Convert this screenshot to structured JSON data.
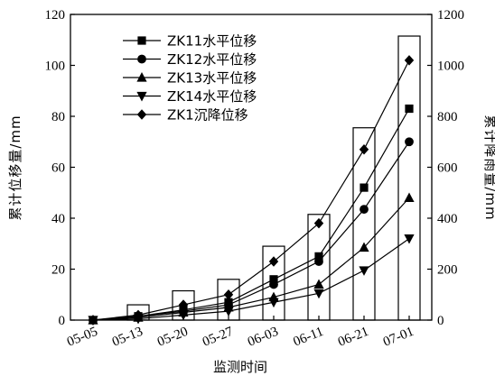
{
  "chart_data": {
    "type": "bar+line",
    "categories": [
      "05-05",
      "05-13",
      "05-20",
      "05-27",
      "06-03",
      "06-11",
      "06-21",
      "07-01"
    ],
    "xlabel": "监测时间",
    "ylabel_left": "累计位移量/mm",
    "ylabel_right": "累计降雨量/mm",
    "ylim_left": [
      0,
      120
    ],
    "ylim_right": [
      0,
      1200
    ],
    "yticks_left": [
      0,
      20,
      40,
      60,
      80,
      100,
      120
    ],
    "yticks_right": [
      0,
      200,
      400,
      600,
      800,
      1000,
      1200
    ],
    "grid": false,
    "legend_position": "top-left",
    "bars": {
      "axis": "right",
      "values": [
        0,
        60,
        115,
        160,
        290,
        415,
        755,
        1115
      ]
    },
    "series": [
      {
        "name": "ZK11水平位移",
        "marker": "square",
        "values": [
          0,
          1.5,
          4,
          7,
          16,
          25,
          52,
          83
        ]
      },
      {
        "name": "ZK12水平位移",
        "marker": "circle",
        "values": [
          0,
          1.5,
          3.5,
          6,
          14,
          23,
          43.5,
          70
        ]
      },
      {
        "name": "ZK13水平位移",
        "marker": "triangle-up",
        "values": [
          0,
          1,
          3,
          5,
          9,
          14,
          28.5,
          48
        ]
      },
      {
        "name": "ZK14水平位移",
        "marker": "triangle-down",
        "values": [
          0,
          0.5,
          2,
          3.5,
          7,
          10.5,
          19.5,
          32
        ]
      },
      {
        "name": "ZK1沉降位移",
        "marker": "diamond",
        "values": [
          0,
          2,
          6,
          10,
          23,
          38,
          67,
          102
        ]
      }
    ]
  }
}
